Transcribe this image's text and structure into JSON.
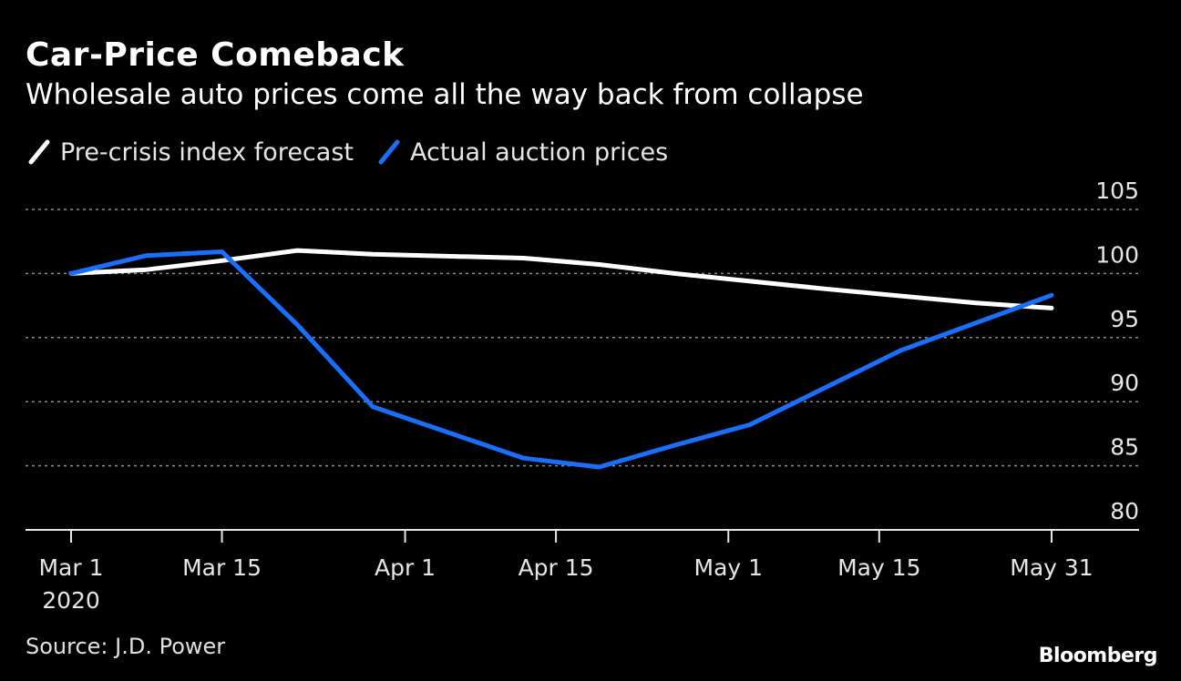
{
  "chart_data": {
    "type": "line",
    "title": "Car-Price Comeback",
    "subtitle": "Wholesale auto prices come all the way back from collapse",
    "xlabel": "",
    "ylabel": "",
    "ylim": [
      80,
      105
    ],
    "yticks": [
      105,
      100,
      95,
      90,
      85,
      80
    ],
    "xticks": [
      {
        "label": "Mar 1",
        "sublabel": "2020",
        "day": 0
      },
      {
        "label": "Mar 15",
        "day": 14
      },
      {
        "label": "Apr 1",
        "day": 31
      },
      {
        "label": "Apr 15",
        "day": 45
      },
      {
        "label": "May 1",
        "day": 61
      },
      {
        "label": "May 15",
        "day": 75
      },
      {
        "label": "May 31",
        "day": 91
      }
    ],
    "grid": true,
    "legend_position": "top-left",
    "series": [
      {
        "name": "Pre-crisis index forecast",
        "color": "#ffffff",
        "points": [
          {
            "day": 0,
            "value": 100.0
          },
          {
            "day": 7,
            "value": 100.3
          },
          {
            "day": 14,
            "value": 101.0
          },
          {
            "day": 21,
            "value": 101.8
          },
          {
            "day": 28,
            "value": 101.5
          },
          {
            "day": 42,
            "value": 101.2
          },
          {
            "day": 49,
            "value": 100.7
          },
          {
            "day": 56,
            "value": 100.0
          },
          {
            "day": 70,
            "value": 98.8
          },
          {
            "day": 84,
            "value": 97.7
          },
          {
            "day": 91,
            "value": 97.3
          }
        ]
      },
      {
        "name": "Actual auction prices",
        "color": "#1a6fff",
        "points": [
          {
            "day": 0,
            "value": 100.0
          },
          {
            "day": 7,
            "value": 101.4
          },
          {
            "day": 14,
            "value": 101.7
          },
          {
            "day": 21,
            "value": 96.0
          },
          {
            "day": 28,
            "value": 89.6
          },
          {
            "day": 42,
            "value": 85.6
          },
          {
            "day": 49,
            "value": 84.9
          },
          {
            "day": 56,
            "value": 86.6
          },
          {
            "day": 63,
            "value": 88.2
          },
          {
            "day": 77,
            "value": 94.0
          },
          {
            "day": 91,
            "value": 98.3
          }
        ]
      }
    ]
  },
  "source": "Source: J.D. Power",
  "brand": "Bloomberg"
}
